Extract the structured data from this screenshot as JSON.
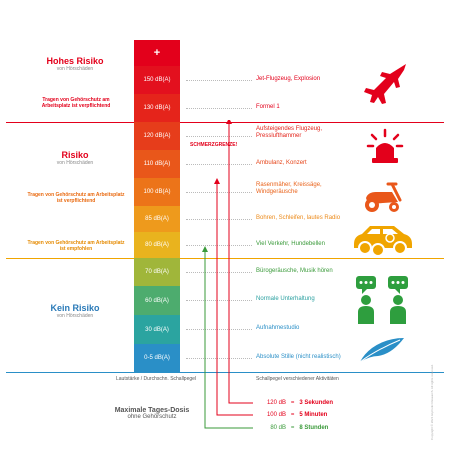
{
  "zones": {
    "high": {
      "title": "Hohes Risiko",
      "subtitle": "von Hörschäden",
      "color": "#e3001b"
    },
    "risk": {
      "title": "Risiko",
      "subtitle": "von Hörschäden",
      "color": "#e3001b"
    },
    "none": {
      "title": "Kein Risiko",
      "subtitle": "von Hörschäden",
      "color": "#2a7ab8"
    }
  },
  "notes": {
    "mandatory_high": "Tragen von Gehörschutz am Arbeitsplatz ist verpflichtend",
    "mandatory_mid": "Tragen von Gehörschutz am Arbeitsplatz ist verpflichtend",
    "recommended": "Tragen von Gehörschutz am Arbeitsplatz ist empfohlen"
  },
  "scale": {
    "plus": "+",
    "levels": [
      "150 dB(A)",
      "130 dB(A)",
      "120 dB(A)",
      "110 dB(A)",
      "100 dB(A)",
      "85 dB(A)",
      "80 dB(A)",
      "70 dB(A)",
      "60 dB(A)",
      "30 dB(A)",
      "0-5 dB(A)"
    ]
  },
  "pain_threshold": "SCHMERZGRENZE!",
  "examples": [
    "Jet-Flugzeug, Explosion",
    "Formel 1",
    "Aufsteigendes Flugzeug, Presslufthammer",
    "Ambulanz, Konzert",
    "Rasenmäher, Kreissäge, Windgeräusche",
    "Bohren, Schleifen, lautes Radio",
    "Viel Verkehr, Hundebellen",
    "Bürogeräusche, Musik hören",
    "Normale Unterhaltung",
    "Aufnahmestudio",
    "Absolute Stille (nicht realistisch)"
  ],
  "footer": {
    "left_caption": "Lautstärke / Durchschn. Schallpegel",
    "right_caption": "Schallpegel verschiedener Aktivitäten",
    "dose_title": "Maximale Tages-Dosis",
    "dose_subtitle": "ohne Gehörschutz"
  },
  "doses": [
    {
      "level": "120 dB",
      "eq": "=",
      "time": "3 Sekunden",
      "color": "#e3001b"
    },
    {
      "level": "100 dB",
      "eq": "=",
      "time": "5 Minuten",
      "color": "#e3001b"
    },
    {
      "level": "80 dB",
      "eq": "=",
      "time": "8 Stunden",
      "color": "#3a9a3a"
    }
  ],
  "icons": [
    "fighter-jet-icon",
    "siren-icon",
    "lawn-mower-icon",
    "car-and-motorbike-icon",
    "conversation-people-icon",
    "feather-icon"
  ],
  "copyright": "Copyright © 2021 Etymotic Research. All rights reserved."
}
